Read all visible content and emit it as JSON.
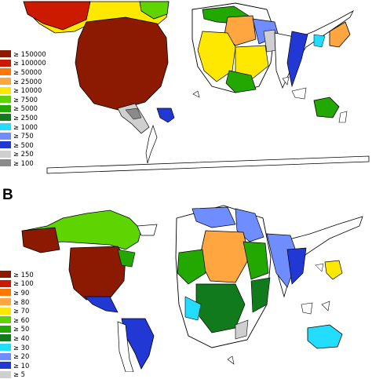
{
  "panels": [
    {
      "id": "A",
      "label": "",
      "legend": [
        {
          "text": "≥ 150000",
          "color": "#8b1a00"
        },
        {
          "text": "≥ 100000",
          "color": "#cc1a00"
        },
        {
          "text": "≥ 50000",
          "color": "#ff7700"
        },
        {
          "text": "≥ 25000",
          "color": "#ffa640"
        },
        {
          "text": "≥ 10000",
          "color": "#ffe800"
        },
        {
          "text": "≥ 7500",
          "color": "#5ed400"
        },
        {
          "text": "≥ 5000",
          "color": "#22a800"
        },
        {
          "text": "≥ 2500",
          "color": "#117a1d"
        },
        {
          "text": "≥ 1000",
          "color": "#22ddff"
        },
        {
          "text": "≥ 750",
          "color": "#6f8dff"
        },
        {
          "text": "≥ 500",
          "color": "#2238d4"
        },
        {
          "text": "≥ 250",
          "color": "#cfcfcf"
        },
        {
          "text": "≥ 100",
          "color": "#8a8a8a"
        }
      ]
    },
    {
      "id": "B",
      "label": "B",
      "legend": [
        {
          "text": "≥ 150",
          "color": "#8b1a00"
        },
        {
          "text": "≥ 100",
          "color": "#cc1a00"
        },
        {
          "text": "≥ 90",
          "color": "#ff7700"
        },
        {
          "text": "≥ 80",
          "color": "#ffa640"
        },
        {
          "text": "≥ 70",
          "color": "#ffe800"
        },
        {
          "text": "≥ 60",
          "color": "#5ed400"
        },
        {
          "text": "≥ 50",
          "color": "#22a800"
        },
        {
          "text": "≥ 40",
          "color": "#117a1d"
        },
        {
          "text": "≥ 30",
          "color": "#22ddff"
        },
        {
          "text": "≥ 20",
          "color": "#6f8dff"
        },
        {
          "text": "≥ 10",
          "color": "#2238d4"
        },
        {
          "text": "≥ 5",
          "color": "#cfcfcf"
        }
      ]
    }
  ]
}
